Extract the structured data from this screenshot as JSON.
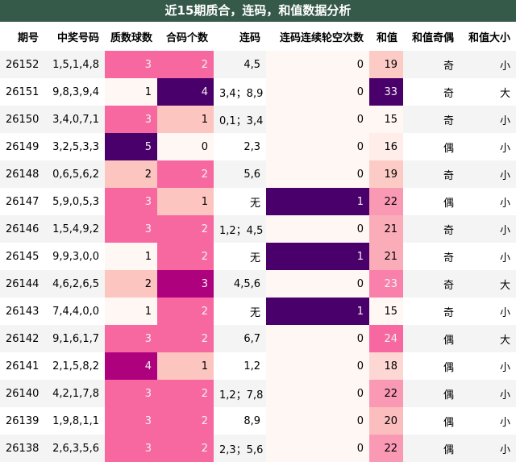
{
  "title": "近15期质合，连码，和值数据分析",
  "table": {
    "header": [
      "期号",
      "中奖号码",
      "质数球数",
      "合码个数",
      "连码",
      "连码连续轮空次数",
      "和值",
      "和值奇偶",
      "和值大小"
    ],
    "rows": [
      [
        26152,
        "1,5,1,4,8",
        3,
        2,
        "4,5",
        0,
        19,
        "奇",
        "小"
      ],
      [
        26151,
        "9,8,3,9,4",
        1,
        4,
        "3,4；8,9",
        0,
        33,
        "奇",
        "大"
      ],
      [
        26150,
        "3,4,0,7,1",
        3,
        1,
        "0,1；3,4",
        0,
        15,
        "奇",
        "小"
      ],
      [
        26149,
        "3,2,5,3,3",
        5,
        0,
        "2,3",
        0,
        16,
        "偶",
        "小"
      ],
      [
        26148,
        "0,6,5,6,2",
        2,
        2,
        "5,6",
        0,
        19,
        "奇",
        "小"
      ],
      [
        26147,
        "5,9,0,5,3",
        3,
        1,
        "无",
        1,
        22,
        "偶",
        "小"
      ],
      [
        26146,
        "1,5,4,9,2",
        3,
        2,
        "1,2；4,5",
        0,
        21,
        "奇",
        "小"
      ],
      [
        26145,
        "9,9,3,0,0",
        1,
        2,
        "无",
        1,
        21,
        "奇",
        "小"
      ],
      [
        26144,
        "4,6,2,6,5",
        2,
        3,
        "4,5,6",
        0,
        23,
        "奇",
        "大"
      ],
      [
        26143,
        "7,4,4,0,0",
        1,
        2,
        "无",
        1,
        15,
        "奇",
        "小"
      ],
      [
        26142,
        "9,1,6,1,7",
        3,
        2,
        "6,7",
        0,
        24,
        "偶",
        "大"
      ],
      [
        26141,
        "2,1,5,8,2",
        4,
        1,
        "1,2",
        0,
        18,
        "偶",
        "小"
      ],
      [
        26140,
        "4,2,1,7,8",
        3,
        2,
        "1,2；7,8",
        0,
        22,
        "偶",
        "小"
      ],
      [
        26139,
        "1,9,8,1,1",
        3,
        2,
        "8,9",
        0,
        20,
        "偶",
        "小"
      ],
      [
        26138,
        "2,6,3,5,6",
        3,
        2,
        "2,3；5,6",
        0,
        22,
        "偶",
        "小"
      ]
    ]
  }
}
